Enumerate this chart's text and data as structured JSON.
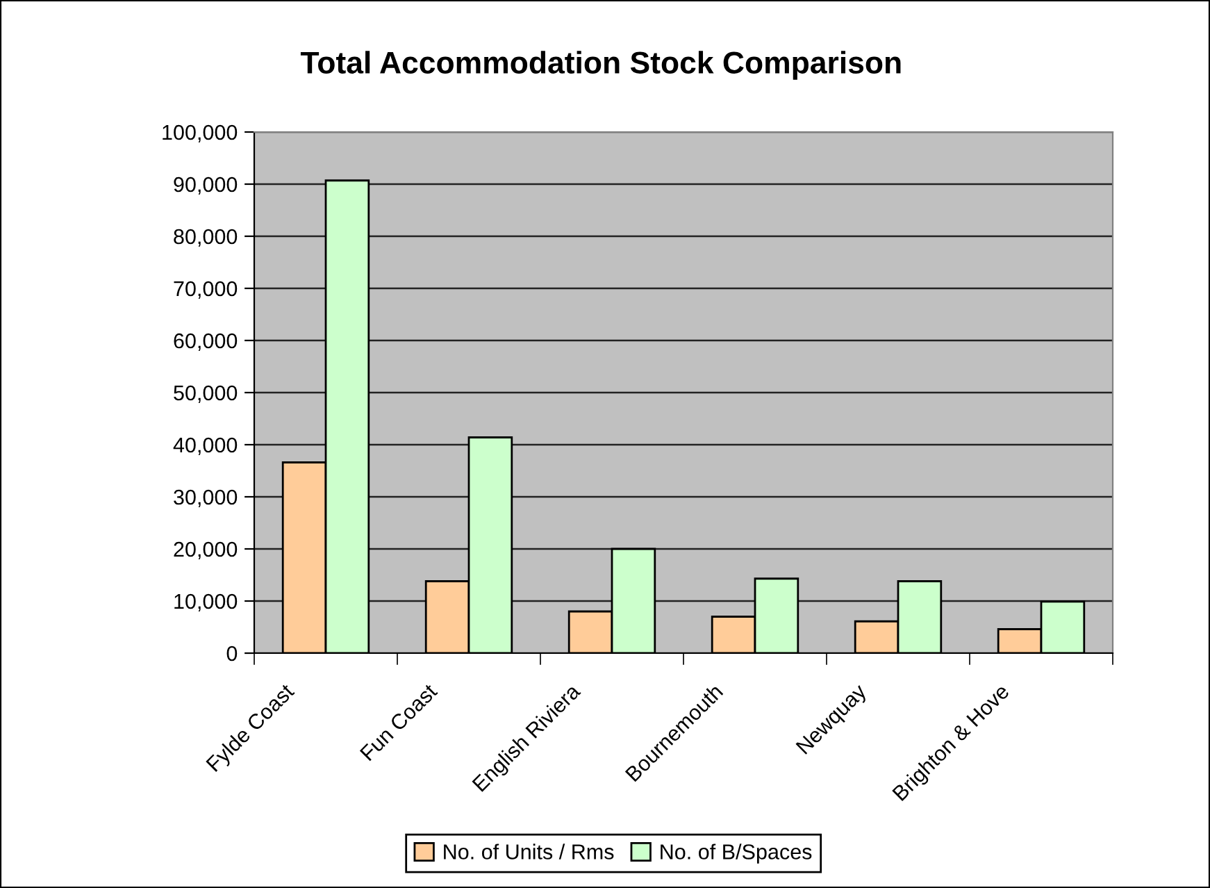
{
  "chart_data": {
    "type": "bar",
    "title": "Total Accommodation Stock Comparison",
    "categories": [
      "Fylde Coast",
      "Fun Coast",
      "English Riviera",
      "Bournemouth",
      "Newquay",
      "Brighton & Hove"
    ],
    "series": [
      {
        "name": "No. of Units / Rms",
        "color": "#ffcc99",
        "values": [
          36600,
          13800,
          8000,
          7000,
          6100,
          4600
        ]
      },
      {
        "name": "No. of B/Spaces",
        "color": "#ccffcc",
        "values": [
          90700,
          41400,
          20000,
          14300,
          13800,
          9900
        ]
      }
    ],
    "ylim": [
      0,
      100000
    ],
    "yticks": [
      0,
      {
        "value": 10000,
        "label": "10,000"
      },
      {
        "value": 20000,
        "label": "20,000"
      },
      {
        "value": 30000,
        "label": "30,000"
      },
      {
        "value": 40000,
        "label": "40,000"
      },
      {
        "value": 50000,
        "label": "50,000"
      },
      {
        "value": 60000,
        "label": "60,000"
      },
      {
        "value": 70000,
        "label": "70,000"
      },
      {
        "value": 80000,
        "label": "80,000"
      },
      {
        "value": 90000,
        "label": "90,000"
      },
      {
        "value": 100000,
        "label": "100,000"
      }
    ],
    "grid": "y",
    "legend": "bottom"
  }
}
